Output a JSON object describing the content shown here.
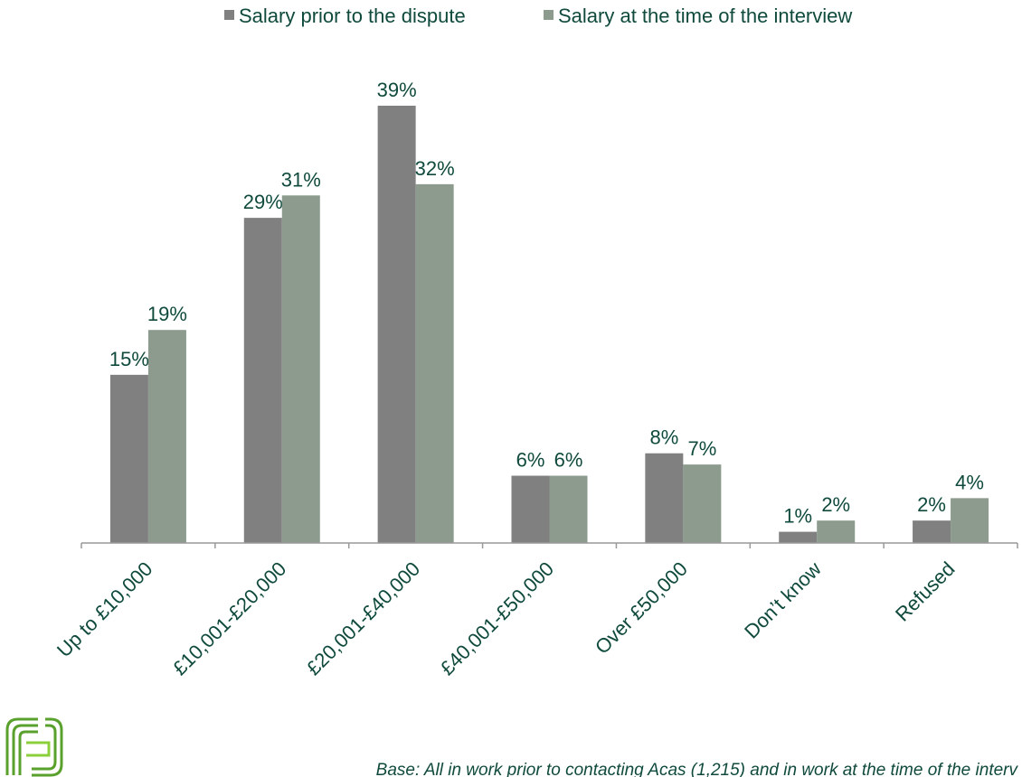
{
  "chart_data": {
    "type": "bar",
    "categories": [
      "Up to £10,000",
      "£10,001-£20,000",
      "£20,001-£40,000",
      "£40,001-£50,000",
      "Over £50,000",
      "Don’t know",
      "Refused"
    ],
    "series": [
      {
        "name": "Salary prior to the dispute",
        "color": "#808080",
        "values": [
          15,
          29,
          39,
          6,
          8,
          1,
          2
        ],
        "value_labels": [
          "15%",
          "29%",
          "39%",
          "6%",
          "8%",
          "1%",
          "2%"
        ]
      },
      {
        "name": "Salary at the time of the interview",
        "color": "#8c9b8e",
        "values": [
          19,
          31,
          32,
          6,
          7,
          2,
          4
        ],
        "value_labels": [
          "19%",
          "31%",
          "32%",
          "6%",
          "7%",
          "2%",
          "4%"
        ]
      }
    ],
    "legend": "top",
    "footnote": "Base: All in work prior to contacting Acas (1,215) and in work at the time of the interv"
  }
}
